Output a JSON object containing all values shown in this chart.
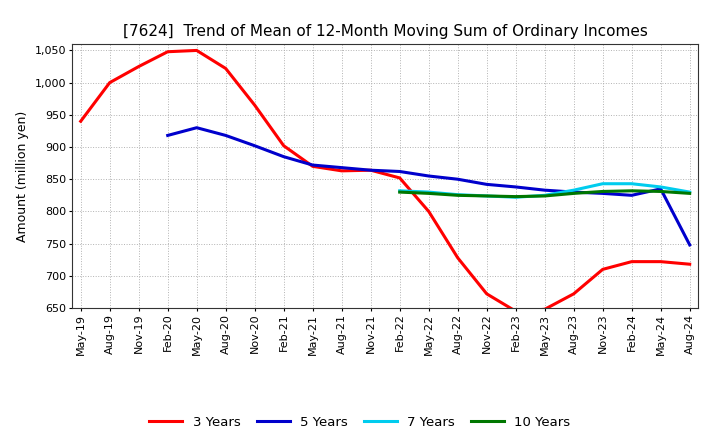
{
  "title": "[7624]  Trend of Mean of 12-Month Moving Sum of Ordinary Incomes",
  "ylabel": "Amount (million yen)",
  "ylim": [
    650,
    1060
  ],
  "yticks": [
    650,
    700,
    750,
    800,
    850,
    900,
    950,
    1000,
    1050
  ],
  "background_color": "#ffffff",
  "grid_color": "#aaaaaa",
  "legend_labels": [
    "3 Years",
    "5 Years",
    "7 Years",
    "10 Years"
  ],
  "legend_colors": [
    "#ff0000",
    "#0000cc",
    "#00ccee",
    "#007700"
  ],
  "x_labels": [
    "May-19",
    "Aug-19",
    "Nov-19",
    "Feb-20",
    "May-20",
    "Aug-20",
    "Nov-20",
    "Feb-21",
    "May-21",
    "Aug-21",
    "Nov-21",
    "Feb-22",
    "May-22",
    "Aug-22",
    "Nov-22",
    "Feb-23",
    "May-23",
    "Aug-23",
    "Nov-23",
    "Feb-24",
    "May-24",
    "Aug-24"
  ],
  "series_3y_x": [
    0,
    1,
    2,
    3,
    4,
    5,
    6,
    7,
    8,
    9,
    10,
    11,
    12,
    13,
    14,
    15,
    16,
    17,
    18,
    19,
    20,
    21
  ],
  "series_3y_y": [
    940,
    1000,
    1025,
    1048,
    1050,
    1022,
    965,
    902,
    870,
    863,
    864,
    852,
    800,
    728,
    672,
    645,
    648,
    672,
    710,
    722,
    722,
    718
  ],
  "series_5y_x": [
    3,
    4,
    5,
    6,
    7,
    8,
    9,
    10,
    11,
    12,
    13,
    14,
    15,
    16,
    17,
    18,
    19,
    20,
    21
  ],
  "series_5y_y": [
    918,
    930,
    918,
    902,
    885,
    872,
    868,
    864,
    862,
    855,
    850,
    842,
    838,
    833,
    830,
    828,
    825,
    835,
    748
  ],
  "series_7y_x": [
    11,
    12,
    13,
    14,
    15,
    16,
    17,
    18,
    19,
    20,
    21
  ],
  "series_7y_y": [
    832,
    830,
    826,
    824,
    822,
    825,
    833,
    843,
    843,
    838,
    830
  ],
  "series_10y_x": [
    11,
    12,
    13,
    14,
    15,
    16,
    17,
    18,
    19,
    20,
    21
  ],
  "series_10y_y": [
    830,
    828,
    825,
    824,
    823,
    824,
    828,
    831,
    832,
    831,
    828
  ],
  "line_width": 2.2,
  "title_fontsize": 11,
  "tick_fontsize": 8,
  "ylabel_fontsize": 9
}
